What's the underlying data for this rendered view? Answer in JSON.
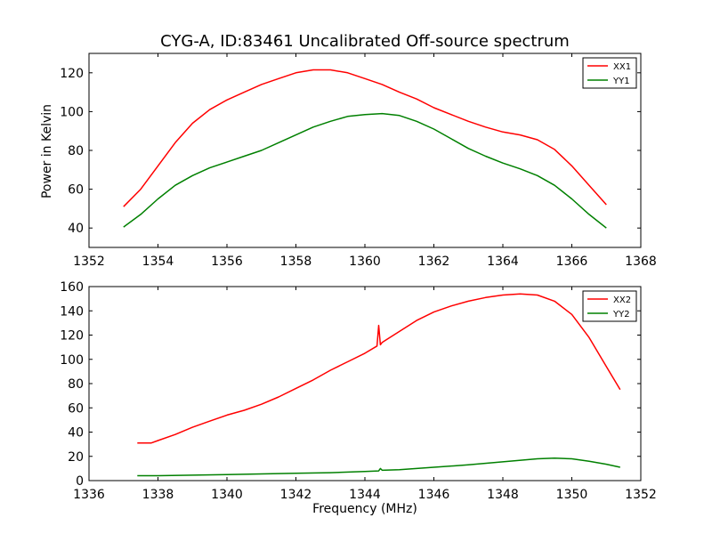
{
  "chart_data": [
    {
      "type": "line",
      "title": "CYG-A, ID:83461 Uncalibrated Off-source spectrum",
      "xlabel": "",
      "ylabel": "Power in Kelvin",
      "xlim": [
        1352,
        1368
      ],
      "ylim": [
        30,
        130
      ],
      "xticks": [
        1352,
        1354,
        1356,
        1358,
        1360,
        1362,
        1364,
        1366,
        1368
      ],
      "yticks": [
        40,
        60,
        80,
        100,
        120
      ],
      "legend_position": "top-right",
      "series": [
        {
          "name": "XX1",
          "color": "#ff0000",
          "x": [
            1353.0,
            1353.5,
            1354.0,
            1354.5,
            1355.0,
            1355.5,
            1356.0,
            1356.5,
            1357.0,
            1357.5,
            1358.0,
            1358.5,
            1359.0,
            1359.5,
            1360.0,
            1360.5,
            1361.0,
            1361.5,
            1362.0,
            1362.5,
            1363.0,
            1363.5,
            1364.0,
            1364.5,
            1365.0,
            1365.5,
            1366.0,
            1366.5,
            1367.0
          ],
          "y": [
            51,
            60,
            72,
            84,
            94,
            101,
            106,
            110,
            114,
            117,
            120,
            121.5,
            121.5,
            120,
            117,
            114,
            110,
            106.5,
            102,
            98.5,
            95,
            92,
            89.5,
            88,
            85.5,
            80.5,
            72,
            62,
            52
          ]
        },
        {
          "name": "YY1",
          "color": "#008000",
          "x": [
            1353.0,
            1353.5,
            1354.0,
            1354.5,
            1355.0,
            1355.5,
            1356.0,
            1356.5,
            1357.0,
            1357.5,
            1358.0,
            1358.5,
            1359.0,
            1359.5,
            1360.0,
            1360.5,
            1361.0,
            1361.5,
            1362.0,
            1362.5,
            1363.0,
            1363.5,
            1364.0,
            1364.5,
            1365.0,
            1365.5,
            1366.0,
            1366.5,
            1367.0
          ],
          "y": [
            40.5,
            47,
            55,
            62,
            67,
            71,
            74,
            77,
            80,
            84,
            88,
            92,
            95,
            97.5,
            98.5,
            99,
            98,
            95,
            91,
            86,
            81,
            77,
            73.5,
            70.5,
            67,
            62,
            55,
            47,
            40
          ]
        }
      ]
    },
    {
      "type": "line",
      "title": "",
      "xlabel": "Frequency (MHz)",
      "ylabel": "",
      "xlim": [
        1336,
        1352
      ],
      "ylim": [
        0,
        160
      ],
      "xticks": [
        1336,
        1338,
        1340,
        1342,
        1344,
        1346,
        1348,
        1350,
        1352
      ],
      "yticks": [
        0,
        20,
        40,
        60,
        80,
        100,
        120,
        140,
        160
      ],
      "legend_position": "top-right",
      "series": [
        {
          "name": "XX2",
          "color": "#ff0000",
          "x": [
            1337.4,
            1337.8,
            1338.0,
            1338.5,
            1339.0,
            1339.5,
            1340.0,
            1340.5,
            1341.0,
            1341.5,
            1342.0,
            1342.5,
            1343.0,
            1343.5,
            1344.0,
            1344.35,
            1344.4,
            1344.45,
            1344.5,
            1345.0,
            1345.5,
            1346.0,
            1346.5,
            1347.0,
            1347.5,
            1348.0,
            1348.5,
            1349.0,
            1349.5,
            1350.0,
            1350.5,
            1351.0,
            1351.4
          ],
          "y": [
            31,
            31,
            33,
            38,
            44,
            49,
            54,
            58,
            63,
            69,
            76,
            83,
            91,
            98,
            105,
            111,
            128,
            112,
            114,
            123,
            132,
            139,
            144,
            148,
            151,
            153,
            154,
            153,
            148,
            137,
            118,
            94,
            75
          ]
        },
        {
          "name": "YY2",
          "color": "#008000",
          "x": [
            1337.4,
            1338.0,
            1339.0,
            1340.0,
            1341.0,
            1342.0,
            1343.0,
            1344.0,
            1344.4,
            1344.45,
            1344.5,
            1345.0,
            1346.0,
            1347.0,
            1348.0,
            1349.0,
            1349.5,
            1350.0,
            1350.5,
            1351.0,
            1351.4
          ],
          "y": [
            4,
            4,
            4.5,
            5,
            5.5,
            6,
            6.5,
            7.5,
            8,
            10,
            8.5,
            9,
            11,
            13,
            15.5,
            18,
            18.5,
            18,
            16,
            13.5,
            11
          ]
        }
      ]
    }
  ]
}
